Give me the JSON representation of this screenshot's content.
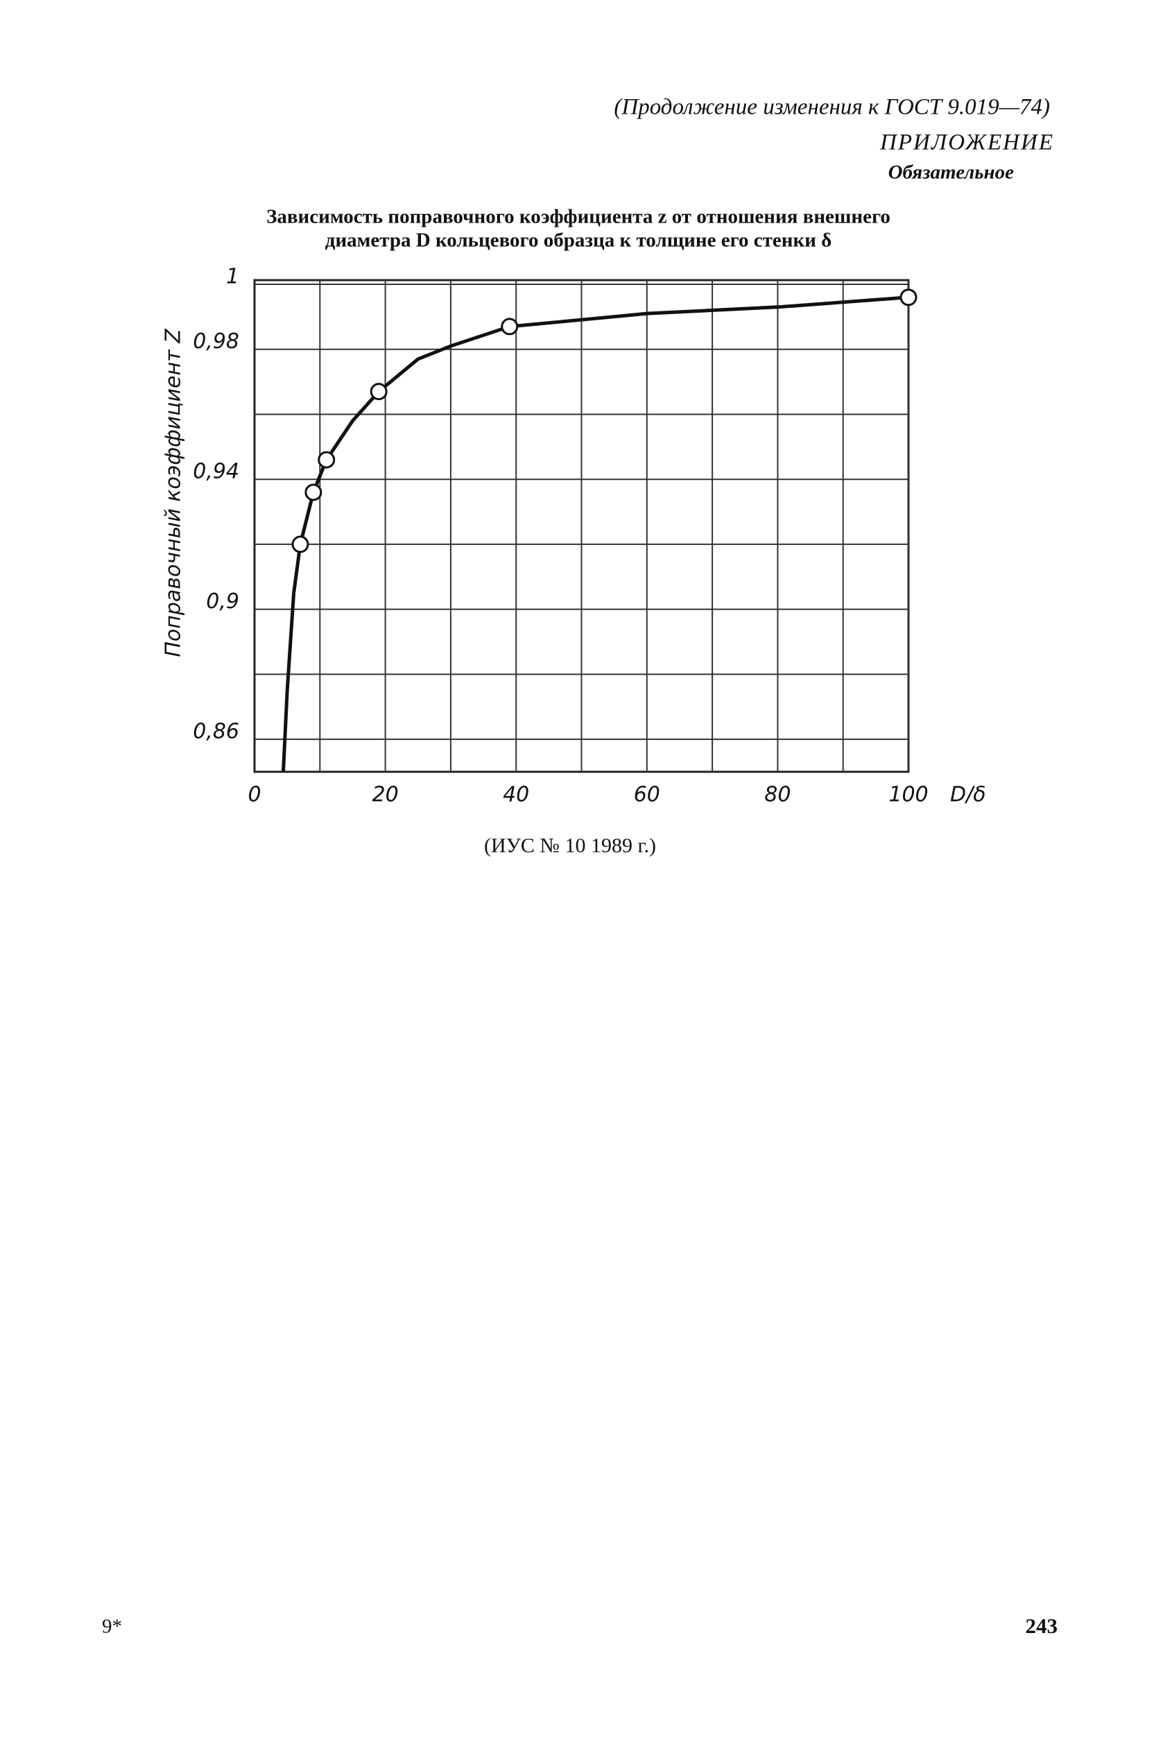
{
  "header": {
    "continuation": "(Продолжение изменения к ГОСТ 9.019—74)",
    "appendix": "ПРИЛОЖЕНИЕ",
    "status": "Обязательное"
  },
  "chart_data": {
    "type": "line",
    "title": [
      "Зависимость поправочного коэффициента z от отношения внешнего",
      "диаметра D кольцевого образца к толщине его стенки δ"
    ],
    "x_label": "D/δ",
    "y_label": "Поправочный коэффициент Z",
    "xlim": [
      0,
      100
    ],
    "ylim": [
      0.85,
      1
    ],
    "xticks": [
      0,
      20,
      40,
      60,
      80,
      100
    ],
    "yticks": [
      {
        "value": 0.86,
        "label": "0,86"
      },
      {
        "value": 0.9,
        "label": "0,9"
      },
      {
        "value": 0.94,
        "label": "0,94"
      },
      {
        "value": 0.98,
        "label": "0,98"
      },
      1
    ],
    "xgrid": [
      10,
      20,
      30,
      40,
      50,
      60,
      70,
      80,
      90,
      100
    ],
    "ygrid": [
      0.86,
      0.88,
      0.9,
      0.92,
      0.94,
      0.96,
      0.98,
      1
    ],
    "grid": true,
    "color": "#111111",
    "series": [
      {
        "x": [
          4.4,
          5,
          6,
          7,
          9,
          11,
          15,
          19,
          25,
          30,
          39,
          60,
          80,
          100
        ],
        "values": [
          0.85,
          0.875,
          0.905,
          0.92,
          0.936,
          0.946,
          0.958,
          0.967,
          0.977,
          0.981,
          0.987,
          0.991,
          0.993,
          0.996
        ],
        "markers": false
      },
      {
        "x": [
          7,
          9,
          11,
          19,
          39,
          100
        ],
        "values": [
          0.92,
          0.936,
          0.946,
          0.967,
          0.987,
          0.996
        ],
        "markers": true
      }
    ]
  },
  "note": "(ИУС № 10 1989 г.)",
  "footer": {
    "signature": "9*",
    "page": "243"
  }
}
